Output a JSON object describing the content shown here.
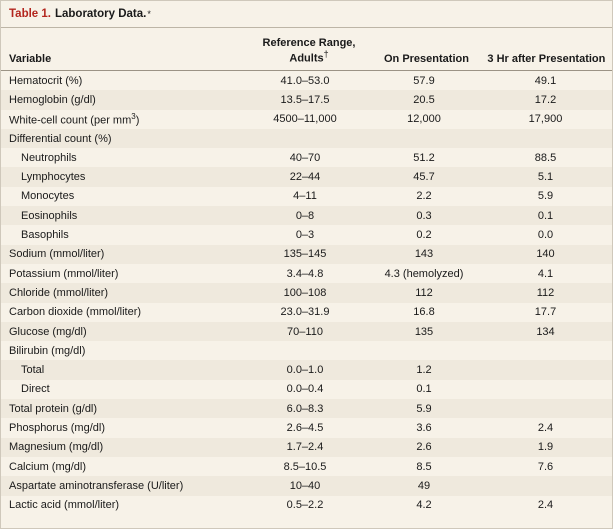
{
  "table": {
    "title_number": "Table 1.",
    "title_text": "Laboratory Data.",
    "title_mark": "*",
    "headers": {
      "variable": "Variable",
      "reference": "Reference Range, Adults",
      "reference_mark": "†",
      "on_presentation": "On Presentation",
      "three_hr": "3 Hr after Presentation"
    },
    "rows": [
      {
        "label": "Hematocrit (%)",
        "ref": "41.0–53.0",
        "on": "57.9",
        "hr3": "49.1",
        "indent": false
      },
      {
        "label": "Hemoglobin (g/dl)",
        "ref": "13.5–17.5",
        "on": "20.5",
        "hr3": "17.2",
        "indent": false
      },
      {
        "label": "White-cell count (per mm",
        "label_sup": "3",
        "label_tail": ")",
        "ref": "4500–11,000",
        "on": "12,000",
        "hr3": "17,900",
        "indent": false
      },
      {
        "label": "Differential count (%)",
        "ref": "",
        "on": "",
        "hr3": "",
        "indent": false
      },
      {
        "label": "Neutrophils",
        "ref": "40–70",
        "on": "51.2",
        "hr3": "88.5",
        "indent": true
      },
      {
        "label": "Lymphocytes",
        "ref": "22–44",
        "on": "45.7",
        "hr3": "5.1",
        "indent": true
      },
      {
        "label": "Monocytes",
        "ref": "4–11",
        "on": "2.2",
        "hr3": "5.9",
        "indent": true
      },
      {
        "label": "Eosinophils",
        "ref": "0–8",
        "on": "0.3",
        "hr3": "0.1",
        "indent": true
      },
      {
        "label": "Basophils",
        "ref": "0–3",
        "on": "0.2",
        "hr3": "0.0",
        "indent": true
      },
      {
        "label": "Sodium (mmol/liter)",
        "ref": "135–145",
        "on": "143",
        "hr3": "140",
        "indent": false
      },
      {
        "label": "Potassium (mmol/liter)",
        "ref": "3.4–4.8",
        "on": "4.3 (hemolyzed)",
        "hr3": "4.1",
        "indent": false
      },
      {
        "label": "Chloride (mmol/liter)",
        "ref": "100–108",
        "on": "112",
        "hr3": "112",
        "indent": false
      },
      {
        "label": "Carbon dioxide (mmol/liter)",
        "ref": "23.0–31.9",
        "on": "16.8",
        "hr3": "17.7",
        "indent": false
      },
      {
        "label": "Glucose (mg/dl)",
        "ref": "70–110",
        "on": "135",
        "hr3": "134",
        "indent": false
      },
      {
        "label": "Bilirubin (mg/dl)",
        "ref": "",
        "on": "",
        "hr3": "",
        "indent": false
      },
      {
        "label": "Total",
        "ref": "0.0–1.0",
        "on": "1.2",
        "hr3": "",
        "indent": true
      },
      {
        "label": "Direct",
        "ref": "0.0–0.4",
        "on": "0.1",
        "hr3": "",
        "indent": true
      },
      {
        "label": "Total protein (g/dl)",
        "ref": "6.0–8.3",
        "on": "5.9",
        "hr3": "",
        "indent": false
      },
      {
        "label": "Phosphorus (mg/dl)",
        "ref": "2.6–4.5",
        "on": "3.6",
        "hr3": "2.4",
        "indent": false
      },
      {
        "label": "Magnesium (mg/dl)",
        "ref": "1.7–2.4",
        "on": "2.6",
        "hr3": "1.9",
        "indent": false
      },
      {
        "label": "Calcium (mg/dl)",
        "ref": "8.5–10.5",
        "on": "8.5",
        "hr3": "7.6",
        "indent": false
      },
      {
        "label": "Aspartate aminotransferase (U/liter)",
        "ref": "10–40",
        "on": "49",
        "hr3": "",
        "indent": false
      },
      {
        "label": "Lactic acid (mmol/liter)",
        "ref": "0.5–2.2",
        "on": "4.2",
        "hr3": "2.4",
        "indent": false
      }
    ]
  }
}
